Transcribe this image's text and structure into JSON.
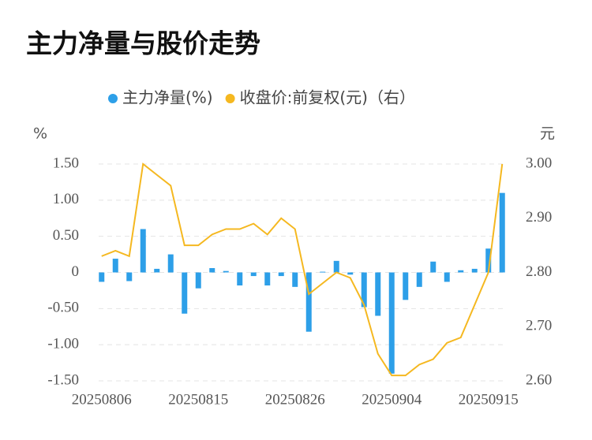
{
  "chart_data": {
    "type": "bar_line",
    "title": "主力净量与股价走势",
    "y_label": "%",
    "y2_label": "元",
    "categories": [
      "20250806",
      null,
      null,
      null,
      null,
      null,
      null,
      "20250815",
      null,
      null,
      null,
      null,
      null,
      null,
      "20250826",
      null,
      null,
      null,
      null,
      null,
      null,
      "20250904",
      null,
      null,
      null,
      null,
      null,
      null,
      "20250915",
      null
    ],
    "series": [
      {
        "name": "主力净量(%)",
        "type": "bar",
        "color": "#2d9fe8",
        "values": [
          -0.13,
          0.19,
          -0.12,
          0.6,
          0.05,
          0.25,
          -0.57,
          -0.22,
          0.06,
          0.02,
          -0.18,
          -0.05,
          -0.18,
          -0.05,
          -0.2,
          -0.82,
          0.01,
          0.16,
          -0.03,
          -0.48,
          -0.6,
          -1.4,
          -0.38,
          -0.2,
          0.15,
          -0.13,
          0.03,
          0.05,
          0.33,
          1.1
        ]
      },
      {
        "name": "收盘价:前复权(元)（右）",
        "type": "line",
        "axis": "y2",
        "color": "#f5b820",
        "values": [
          2.83,
          2.84,
          2.83,
          3.0,
          2.98,
          2.96,
          2.85,
          2.85,
          2.87,
          2.88,
          2.88,
          2.89,
          2.87,
          2.9,
          2.88,
          2.76,
          2.78,
          2.8,
          2.79,
          2.74,
          2.65,
          2.61,
          2.61,
          2.63,
          2.64,
          2.67,
          2.68,
          2.74,
          2.8,
          3.0
        ]
      }
    ],
    "ylim": [
      -1.5,
      1.5
    ],
    "yticks": [
      {
        "value": 1.5,
        "label": "1.50"
      },
      {
        "value": 1.0,
        "label": "1.00"
      },
      {
        "value": 0.5,
        "label": "0.50"
      },
      0,
      {
        "value": -0.5,
        "label": "-0.50"
      },
      {
        "value": -1.0,
        "label": "-1.00"
      },
      {
        "value": -1.5,
        "label": "-1.50"
      }
    ],
    "y2lim": [
      2.6,
      3.0
    ],
    "y2ticks": [
      {
        "value": 3.0,
        "label": "3.00"
      },
      {
        "value": 2.9,
        "label": "2.90"
      },
      {
        "value": 2.8,
        "label": "2.80"
      },
      {
        "value": 2.7,
        "label": "2.70"
      },
      {
        "value": 2.6,
        "label": "2.60"
      }
    ],
    "grid": true
  }
}
